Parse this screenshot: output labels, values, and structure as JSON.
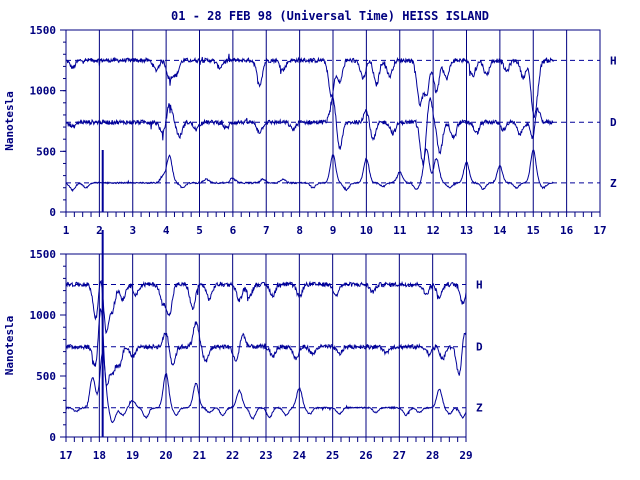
{
  "chart_data": {
    "title": "01 - 28 FEB 98 (Universal Time) HEISS ISLAND",
    "ylabel": "Nanotesla",
    "colors": {
      "trace": "#000099",
      "axis": "#000080"
    },
    "panels": [
      {
        "type": "line",
        "x_ticks": [
          "1",
          "2",
          "3",
          "4",
          "5",
          "6",
          "7",
          "8",
          "9",
          "10",
          "11",
          "12",
          "13",
          "14",
          "15",
          "16",
          "17"
        ],
        "y_ticks": [
          "0",
          "500",
          "1000",
          "1500"
        ],
        "xlim": [
          1,
          17
        ],
        "ylim": [
          0,
          1500
        ],
        "data_end_x": 15.6,
        "series": [
          {
            "name": "H",
            "baseline": 1250,
            "noise": 18,
            "dips": [
              [
                1.2,
                -60
              ],
              [
                3.7,
                -80
              ],
              [
                4.1,
                -150
              ],
              [
                4.3,
                -120
              ],
              [
                5.6,
                -60
              ],
              [
                6.8,
                -200
              ],
              [
                7.5,
                -80
              ],
              [
                8.95,
                -300
              ],
              [
                9.2,
                -180
              ],
              [
                9.9,
                -150
              ],
              [
                10.3,
                -200
              ],
              [
                10.7,
                -130
              ],
              [
                11.6,
                -350
              ],
              [
                11.8,
                -280
              ],
              [
                12.1,
                -260
              ],
              [
                12.4,
                -150
              ],
              [
                13.2,
                -130
              ],
              [
                13.6,
                -120
              ],
              [
                14.2,
                -90
              ],
              [
                14.7,
                -140
              ],
              [
                15.0,
                -350
              ],
              [
                15.1,
                -200
              ]
            ]
          },
          {
            "name": "D",
            "baseline": 740,
            "noise": 18,
            "dips": [
              [
                1.2,
                -40
              ],
              [
                3.9,
                -100
              ],
              [
                4.1,
                150
              ],
              [
                4.4,
                -120
              ],
              [
                4.9,
                -60
              ],
              [
                5.8,
                -50
              ],
              [
                6.8,
                -80
              ],
              [
                7.8,
                -60
              ],
              [
                9.0,
                200
              ],
              [
                9.2,
                -220
              ],
              [
                10.0,
                100
              ],
              [
                10.2,
                -150
              ],
              [
                10.8,
                -90
              ],
              [
                11.7,
                -350
              ],
              [
                11.9,
                200
              ],
              [
                12.2,
                -250
              ],
              [
                12.6,
                -120
              ],
              [
                13.3,
                -90
              ],
              [
                14.1,
                -60
              ],
              [
                14.6,
                -100
              ],
              [
                15.0,
                -180
              ],
              [
                15.1,
                160
              ]
            ]
          },
          {
            "name": "Z",
            "baseline": 240,
            "noise": 6,
            "dips": [
              [
                1.2,
                -60
              ],
              [
                1.6,
                -40
              ],
              [
                3.9,
                50
              ],
              [
                4.1,
                220
              ],
              [
                4.5,
                -40
              ],
              [
                5.2,
                30
              ],
              [
                6.0,
                40
              ],
              [
                6.9,
                30
              ],
              [
                7.5,
                30
              ],
              [
                8.4,
                -40
              ],
              [
                9.0,
                230
              ],
              [
                9.4,
                -60
              ],
              [
                10.0,
                200
              ],
              [
                10.5,
                -30
              ],
              [
                11.0,
                90
              ],
              [
                11.5,
                -50
              ],
              [
                11.8,
                280
              ],
              [
                12.1,
                200
              ],
              [
                12.5,
                -40
              ],
              [
                13.0,
                170
              ],
              [
                13.5,
                -50
              ],
              [
                14.0,
                140
              ],
              [
                14.5,
                -40
              ],
              [
                15.0,
                270
              ],
              [
                15.3,
                -40
              ]
            ]
          }
        ]
      },
      {
        "type": "line",
        "x_ticks": [
          "17",
          "18",
          "19",
          "20",
          "21",
          "22",
          "23",
          "24",
          "25",
          "26",
          "27",
          "28",
          "29"
        ],
        "y_ticks": [
          "0",
          "500",
          "1000",
          "1500"
        ],
        "xlim": [
          17,
          29
        ],
        "ylim": [
          0,
          1500
        ],
        "data_end_x": 29,
        "series": [
          {
            "name": "H",
            "baseline": 1250,
            "noise": 18,
            "dips": [
              [
                17.9,
                -300
              ],
              [
                18.05,
                150
              ],
              [
                18.2,
                -400
              ],
              [
                18.4,
                -200
              ],
              [
                18.7,
                -120
              ],
              [
                19.1,
                -80
              ],
              [
                19.9,
                -150
              ],
              [
                20.1,
                -250
              ],
              [
                20.8,
                -200
              ],
              [
                21.3,
                -120
              ],
              [
                22.2,
                -130
              ],
              [
                22.5,
                -100
              ],
              [
                23.2,
                -90
              ],
              [
                24.0,
                -100
              ],
              [
                25.1,
                -80
              ],
              [
                26.2,
                -60
              ],
              [
                27.8,
                -80
              ],
              [
                28.2,
                -100
              ],
              [
                28.9,
                -150
              ]
            ]
          },
          {
            "name": "D",
            "baseline": 740,
            "noise": 18,
            "dips": [
              [
                17.9,
                -200
              ],
              [
                18.05,
                400
              ],
              [
                18.2,
                -350
              ],
              [
                18.4,
                -200
              ],
              [
                18.6,
                -150
              ],
              [
                19.0,
                -80
              ],
              [
                20.0,
                120
              ],
              [
                20.2,
                -150
              ],
              [
                20.9,
                200
              ],
              [
                21.2,
                -120
              ],
              [
                22.1,
                -120
              ],
              [
                22.3,
                100
              ],
              [
                23.2,
                -80
              ],
              [
                23.9,
                -100
              ],
              [
                24.4,
                -60
              ],
              [
                25.2,
                -60
              ],
              [
                26.6,
                -50
              ],
              [
                27.9,
                -60
              ],
              [
                28.3,
                -100
              ],
              [
                28.8,
                -250
              ],
              [
                28.95,
                150
              ]
            ]
          },
          {
            "name": "Z",
            "baseline": 240,
            "noise": 6,
            "dips": [
              [
                17.3,
                -30
              ],
              [
                17.8,
                250
              ],
              [
                18.1,
                450
              ],
              [
                18.4,
                -120
              ],
              [
                18.7,
                -60
              ],
              [
                19.0,
                60
              ],
              [
                19.4,
                -80
              ],
              [
                20.0,
                280
              ],
              [
                20.3,
                -60
              ],
              [
                20.9,
                200
              ],
              [
                21.3,
                -40
              ],
              [
                21.7,
                -60
              ],
              [
                22.2,
                140
              ],
              [
                22.6,
                -90
              ],
              [
                23.1,
                -80
              ],
              [
                23.6,
                -60
              ],
              [
                24.0,
                160
              ],
              [
                24.3,
                -50
              ],
              [
                25.2,
                -50
              ],
              [
                26.3,
                -40
              ],
              [
                27.2,
                -60
              ],
              [
                27.6,
                -40
              ],
              [
                28.2,
                150
              ],
              [
                28.5,
                -50
              ],
              [
                28.9,
                -80
              ]
            ]
          }
        ]
      }
    ]
  }
}
